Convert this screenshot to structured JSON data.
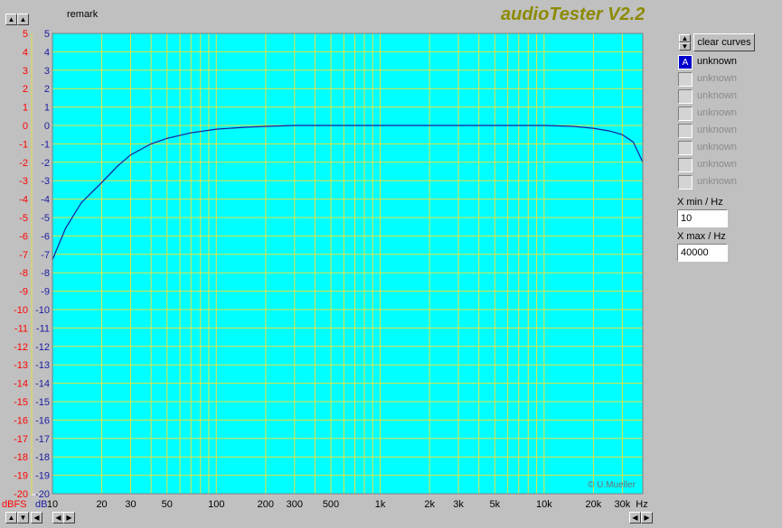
{
  "app": {
    "title": "audioTester V2.2",
    "remark_label": "remark",
    "watermark": "© U.Mueller"
  },
  "controls": {
    "clear_curves_label": "clear curves",
    "curves": [
      {
        "letter": "A",
        "label": "unknown",
        "active": true
      },
      {
        "letter": "",
        "label": "unknown",
        "active": false
      },
      {
        "letter": "",
        "label": "unknown",
        "active": false
      },
      {
        "letter": "",
        "label": "unknown",
        "active": false
      },
      {
        "letter": "",
        "label": "unknown",
        "active": false
      },
      {
        "letter": "",
        "label": "unknown",
        "active": false
      },
      {
        "letter": "",
        "label": "unknown",
        "active": false
      },
      {
        "letter": "",
        "label": "unknown",
        "active": false
      }
    ],
    "xmin_label": "X min / Hz",
    "xmin_value": "10",
    "xmax_label": "X max / Hz",
    "xmax_value": "40000"
  },
  "chart_data": {
    "type": "line",
    "x_scale": "log",
    "xlim": [
      10,
      40000
    ],
    "ylim": [
      -20,
      5
    ],
    "grid": true,
    "background_color": "#00ffff",
    "grid_color": "#e8e040",
    "line_color": "#1a1aa0",
    "dbfs_color": "#ff0000",
    "x_unit_label": "Hz",
    "y_left_unit": "dBFS",
    "y_right_unit": "dB",
    "x_ticks": [
      {
        "value": 10,
        "label": "10"
      },
      {
        "value": 20,
        "label": "20"
      },
      {
        "value": 30,
        "label": "30"
      },
      {
        "value": 50,
        "label": "50"
      },
      {
        "value": 100,
        "label": "100"
      },
      {
        "value": 200,
        "label": "200"
      },
      {
        "value": 300,
        "label": "300"
      },
      {
        "value": 500,
        "label": "500"
      },
      {
        "value": 1000,
        "label": "1k"
      },
      {
        "value": 2000,
        "label": "2k"
      },
      {
        "value": 3000,
        "label": "3k"
      },
      {
        "value": 5000,
        "label": "5k"
      },
      {
        "value": 10000,
        "label": "10k"
      },
      {
        "value": 20000,
        "label": "20k"
      },
      {
        "value": 30000,
        "label": "30k"
      }
    ],
    "y_ticks": [
      5,
      4,
      3,
      2,
      1,
      0,
      -1,
      -2,
      -3,
      -4,
      -5,
      -6,
      -7,
      -8,
      -9,
      -10,
      -11,
      -12,
      -13,
      -14,
      -15,
      -16,
      -17,
      -18,
      -19,
      -20
    ],
    "series": [
      {
        "x": [
          10,
          12,
          15,
          20,
          25,
          30,
          40,
          50,
          70,
          100,
          150,
          200,
          300,
          500,
          1000,
          2000,
          5000,
          10000,
          15000,
          20000,
          25000,
          30000,
          35000,
          40000
        ],
        "y": [
          -7.3,
          -5.6,
          -4.2,
          -3.1,
          -2.2,
          -1.6,
          -1.0,
          -0.7,
          -0.4,
          -0.2,
          -0.1,
          -0.05,
          0,
          0,
          0,
          0,
          0,
          0,
          -0.05,
          -0.15,
          -0.3,
          -0.5,
          -0.9,
          -2.0
        ]
      }
    ]
  }
}
